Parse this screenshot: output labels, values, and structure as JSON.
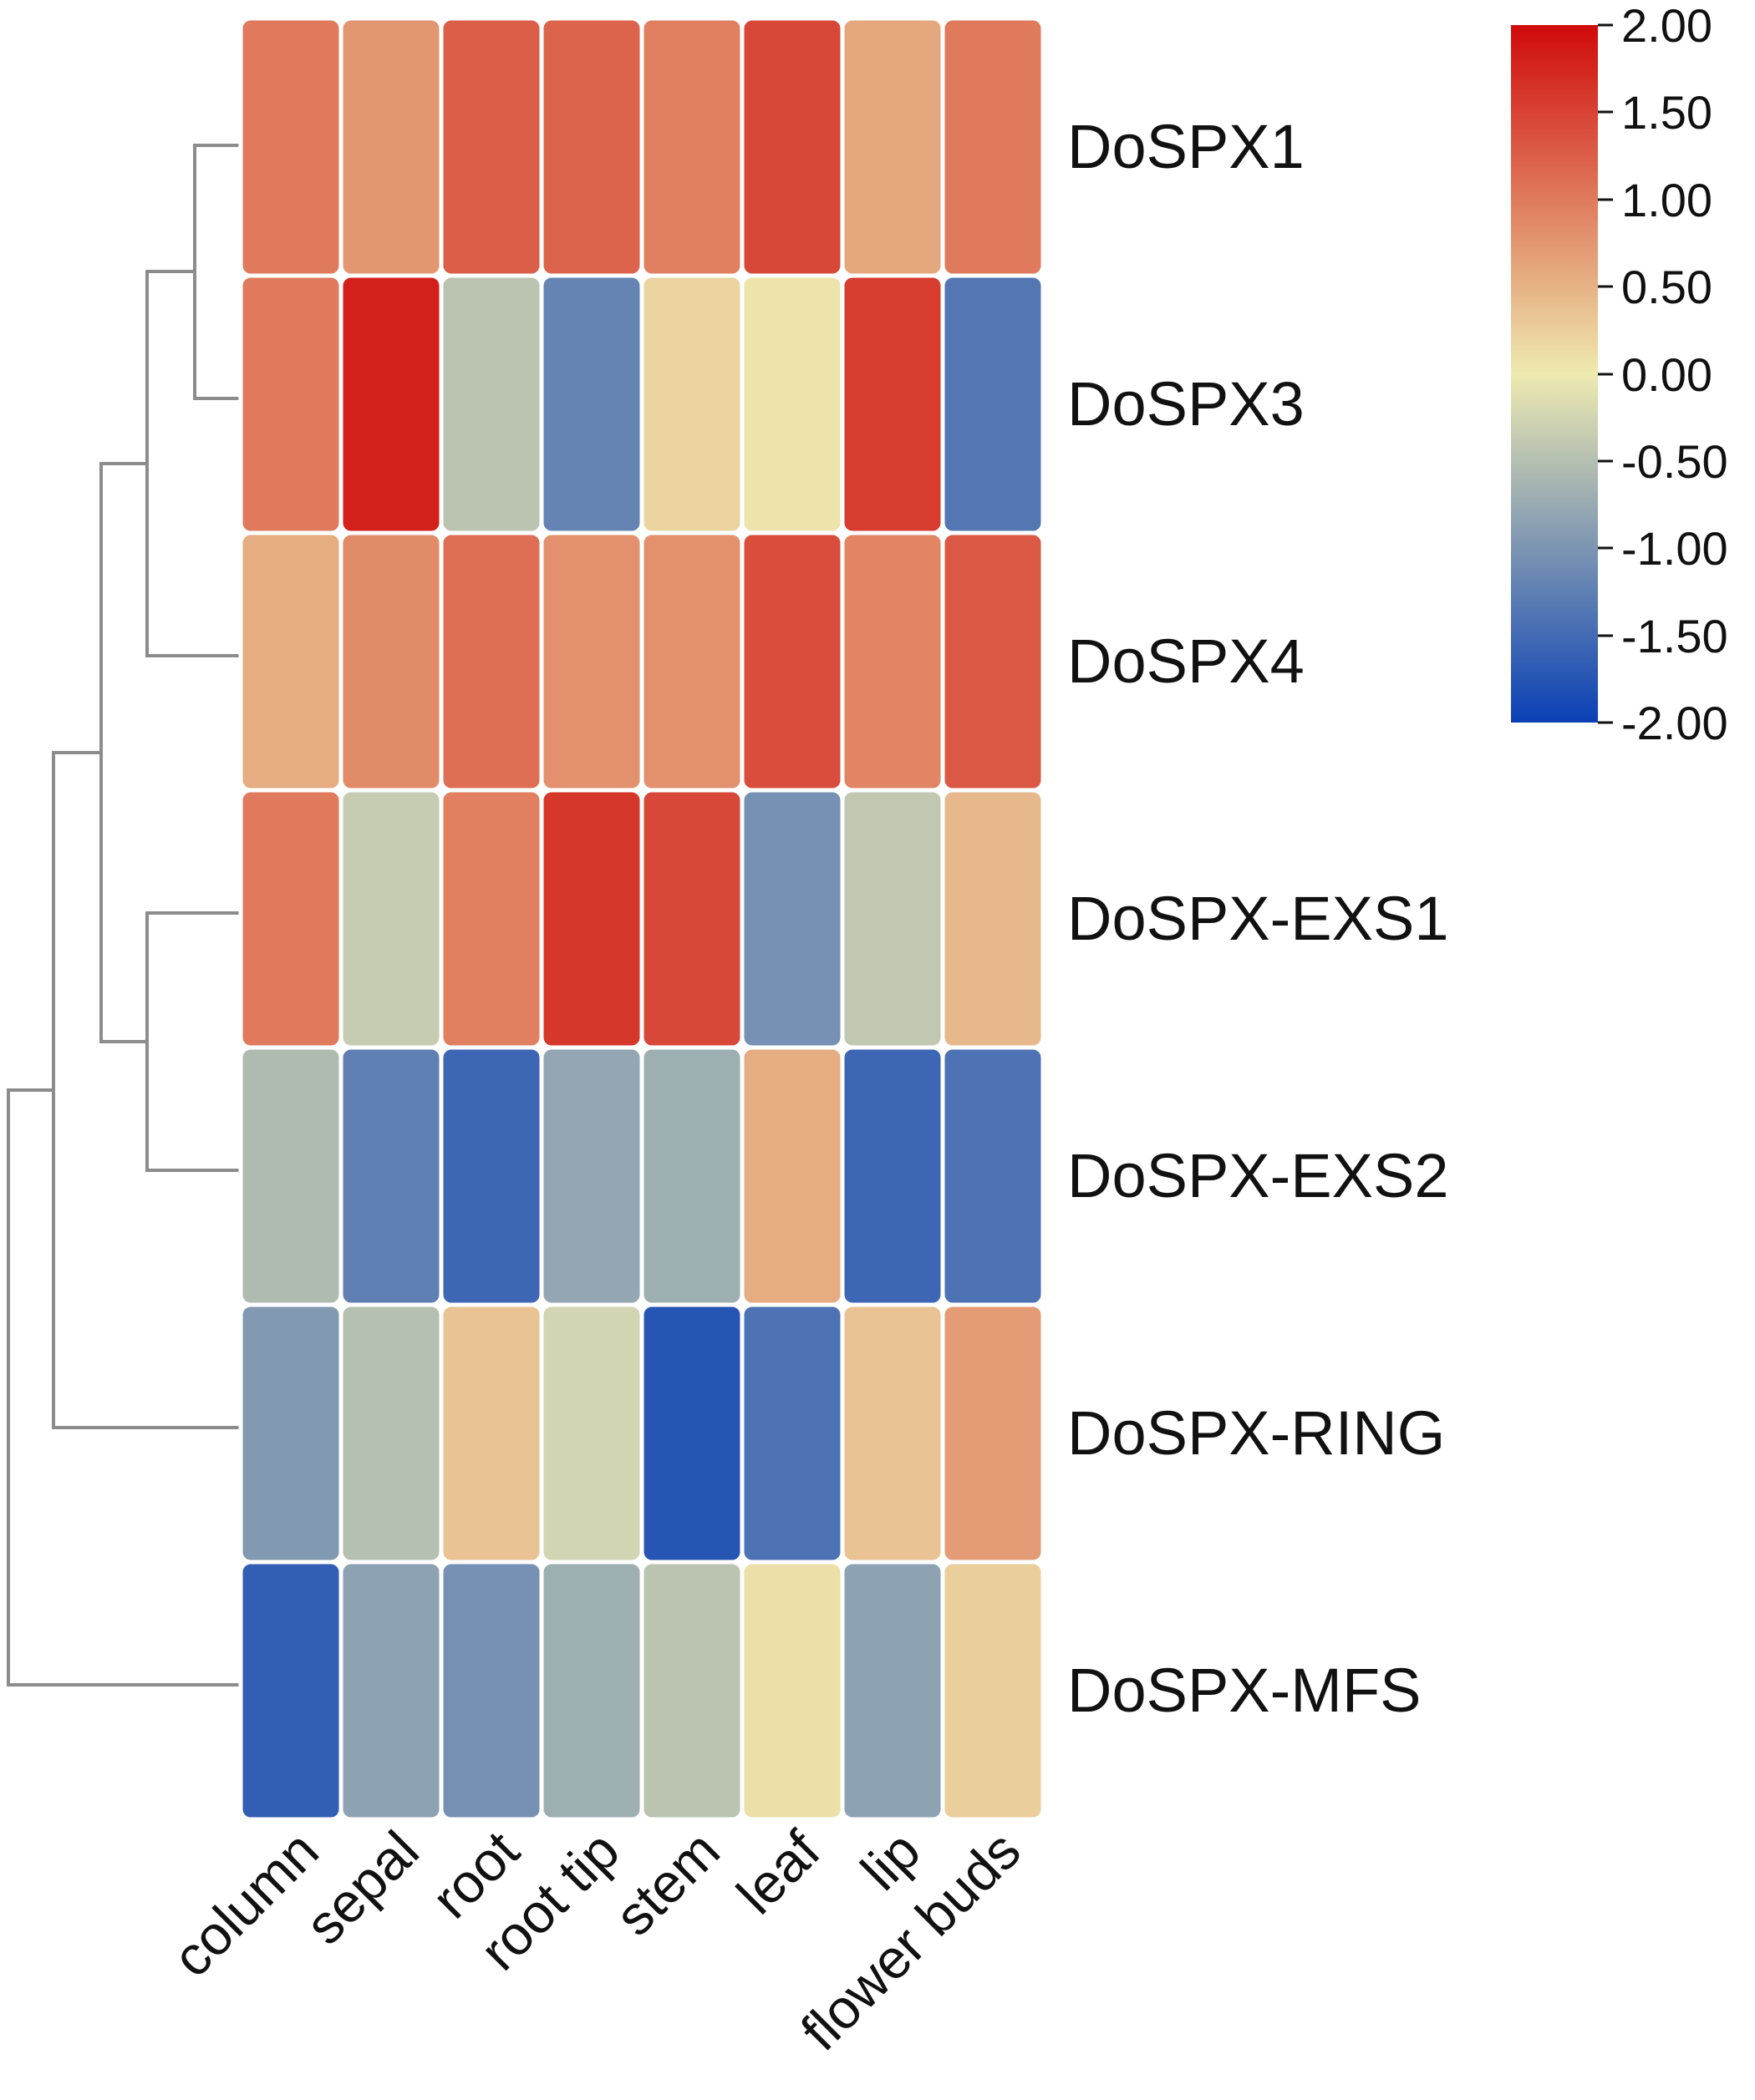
{
  "chart_data": {
    "type": "heatmap",
    "title": "",
    "columns": [
      "column",
      "sepal",
      "root",
      "root tip",
      "stem",
      "leaf",
      "lip",
      "flower buds"
    ],
    "rows": [
      "DoSPX1",
      "DoSPX3",
      "DoSPX4",
      "DoSPX-EXS1",
      "DoSPX-EXS2",
      "DoSPX-RING",
      "DoSPX-MFS"
    ],
    "values": [
      [
        1.0,
        0.75,
        1.25,
        1.2,
        0.95,
        1.45,
        0.6,
        1.0
      ],
      [
        1.0,
        1.8,
        -0.45,
        -1.2,
        0.2,
        0.05,
        1.55,
        -1.35
      ],
      [
        0.55,
        0.85,
        1.1,
        0.8,
        0.8,
        1.4,
        0.9,
        1.3
      ],
      [
        1.0,
        -0.35,
        0.95,
        1.6,
        1.45,
        -1.05,
        -0.4,
        0.45
      ],
      [
        -0.55,
        -1.25,
        -1.55,
        -0.8,
        -0.7,
        0.55,
        -1.55,
        -1.4
      ],
      [
        -0.95,
        -0.5,
        0.35,
        -0.25,
        -1.75,
        -1.4,
        0.35,
        0.7
      ],
      [
        -1.65,
        -0.85,
        -1.05,
        -0.7,
        -0.45,
        0.1,
        -0.85,
        0.25
      ]
    ],
    "colorbar": {
      "ticks": [
        "2.00",
        "1.50",
        "1.00",
        "0.50",
        "0.00",
        "-0.50",
        "-1.00",
        "-1.50",
        "-2.00"
      ],
      "range": [
        -2.0,
        2.0
      ],
      "colors": {
        "low": "#0a40b5",
        "mid": "#eeeab0",
        "high": "#d00a0a"
      },
      "placement": "top-right"
    },
    "dendrogram": {
      "side": "left",
      "color": "#8c8c8c"
    }
  }
}
